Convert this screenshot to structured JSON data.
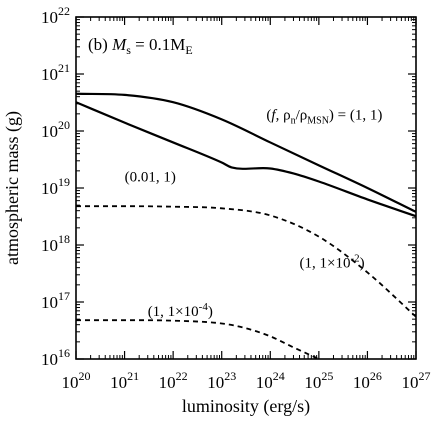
{
  "chart_data": {
    "type": "line",
    "panel_label": {
      "prefix": "(b) ",
      "var": "M",
      "var_sub": "s",
      "eq": " = 0.1M",
      "unit_sub": "E"
    },
    "xlabel": "luminosity (erg/s)",
    "ylabel": "atmospheric mass (g)",
    "x_scale": "log",
    "y_scale": "log",
    "xlim": [
      1e+20,
      1e+27
    ],
    "ylim": [
      1e+16,
      1e+22
    ],
    "x_tick_exponents": [
      20,
      21,
      22,
      23,
      24,
      25,
      26,
      27
    ],
    "y_tick_exponents": [
      16,
      17,
      18,
      19,
      20,
      21,
      22
    ],
    "tick_base": "10",
    "grid": false,
    "legend": "none",
    "series": [
      {
        "style": "solid",
        "label": "(f, ρn/ρMSN) = (1, 1)",
        "label_parts": {
          "open": "(",
          "f": "f",
          "rho": ", ρ",
          "rho_sub": "n",
          "slash": "/ρ",
          "msn_sub": "MSN",
          "close": ") = (1, 1)"
        },
        "label_anchor": {
          "x": 1.3e+25,
          "y": 1.6e+20
        },
        "x": [
          1e+20,
          1e+21,
          1e+22,
          1e+23,
          1e+24,
          1e+25,
          1e+26,
          1e+27
        ],
        "y": [
          4.5e+20,
          4.3e+20,
          3.2e+20,
          1.6e+20,
          6.3e+19,
          2.5e+19,
          1e+19,
          3.8e+18
        ]
      },
      {
        "style": "solid",
        "label": "(0.01, 1)",
        "label_anchor": {
          "x": 1e+21,
          "y": 1.3e+19
        },
        "x": [
          1e+20,
          1e+21,
          1e+22,
          1e+23,
          1.6e+23,
          1e+24,
          3e+24,
          1e+25,
          1e+26,
          1e+27
        ],
        "y": [
          3.2e+20,
          1.4e+20,
          6.3e+19,
          2.8e+19,
          2.3e+19,
          2.2e+19,
          1.8e+19,
          1.3e+19,
          6.3e+18,
          3.2e+18
        ]
      },
      {
        "style": "dashed",
        "label": "(1, 1×10-2)",
        "label_parts": {
          "base": "(1, 1×10",
          "exp": "-2",
          "close": ")"
        },
        "label_anchor": {
          "x": 4e+24,
          "y": 4e+17
        },
        "x": [
          1e+20,
          1e+21,
          1e+22,
          1e+23,
          1e+24,
          1e+25,
          1e+26,
          1e+27
        ],
        "y": [
          4.8e+18,
          4.8e+18,
          4.7e+18,
          4.4e+18,
          3.3e+18,
          1.4e+18,
          3.3e+17,
          5.5e+16
        ]
      },
      {
        "style": "dashed",
        "label": "(1, 1×10-4)",
        "label_parts": {
          "base": "(1, 1×10",
          "exp": "-4",
          "close": ")"
        },
        "label_anchor": {
          "x": 3e+21,
          "y": 5.7e+16
        },
        "x": [
          1e+20,
          1e+21,
          1e+22,
          1e+23,
          3e+23,
          1e+24,
          3e+24,
          1e+25
        ],
        "y": [
          4.8e+16,
          4.8e+16,
          4.7e+16,
          4.2e+16,
          3.5e+16,
          2.5e+16,
          1.6e+16,
          1e+16
        ]
      }
    ]
  }
}
